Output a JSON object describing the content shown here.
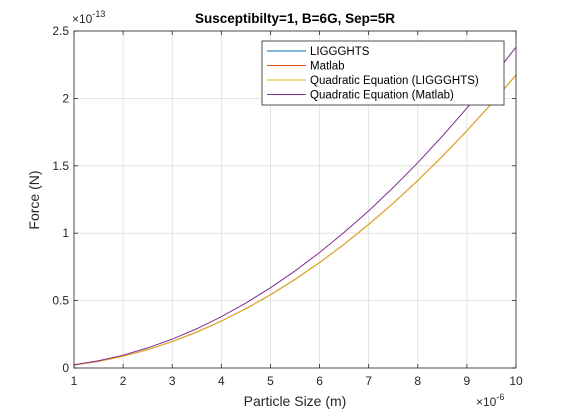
{
  "figure": {
    "background": "#ffffff",
    "axes_color": "#262626",
    "grid_color": "#dedede"
  },
  "chart_data": {
    "type": "line",
    "title": "Susceptibilty=1, B=6G, Sep=5R",
    "xlabel": "Particle Size (m)",
    "ylabel": "Force (N)",
    "x_exponent_base": "×10",
    "x_exponent_power": "-6",
    "y_exponent_base": "×10",
    "y_exponent_power": "-13",
    "xlim": [
      1,
      10
    ],
    "ylim": [
      0,
      2.5
    ],
    "xticks": [
      1,
      2,
      3,
      4,
      5,
      6,
      7,
      8,
      9,
      10
    ],
    "xticklabels": [
      "1",
      "2",
      "3",
      "4",
      "5",
      "6",
      "7",
      "8",
      "9",
      "10"
    ],
    "yticks": [
      0,
      0.5,
      1,
      1.5,
      2,
      2.5
    ],
    "yticklabels": [
      "0",
      "0.5",
      "1",
      "1.5",
      "2",
      "2.5"
    ],
    "grid": true,
    "legend_position": "top-right",
    "x": [
      1,
      1.5,
      2,
      2.5,
      3,
      3.5,
      4,
      4.5,
      5,
      5.5,
      6,
      6.5,
      7,
      7.5,
      8,
      8.5,
      9,
      9.5,
      10
    ],
    "series": [
      {
        "name": "LIGGGHTS",
        "color": "#0072bd",
        "values": [
          0.022,
          0.049,
          0.087,
          0.136,
          0.196,
          0.266,
          0.348,
          0.44,
          0.543,
          0.657,
          0.782,
          0.918,
          1.065,
          1.222,
          1.391,
          1.57,
          1.76,
          1.961,
          2.173
        ]
      },
      {
        "name": "Matlab",
        "color": "#d95319",
        "values": [
          0.022,
          0.049,
          0.087,
          0.136,
          0.196,
          0.266,
          0.348,
          0.44,
          0.543,
          0.657,
          0.782,
          0.918,
          1.065,
          1.222,
          1.391,
          1.57,
          1.76,
          1.961,
          2.173
        ]
      },
      {
        "name": "Quadratic Equation (LIGGGHTS)",
        "color": "#edb120",
        "values": [
          0.022,
          0.049,
          0.087,
          0.136,
          0.196,
          0.266,
          0.348,
          0.44,
          0.543,
          0.657,
          0.782,
          0.918,
          1.065,
          1.222,
          1.391,
          1.57,
          1.76,
          1.961,
          2.173
        ]
      },
      {
        "name": "Quadratic Equation (Matlab)",
        "color": "#7e2f8e",
        "values": [
          0.024,
          0.054,
          0.095,
          0.149,
          0.214,
          0.291,
          0.381,
          0.482,
          0.595,
          0.72,
          0.857,
          1.006,
          1.166,
          1.339,
          1.523,
          1.72,
          1.928,
          2.148,
          2.38
        ]
      }
    ]
  }
}
